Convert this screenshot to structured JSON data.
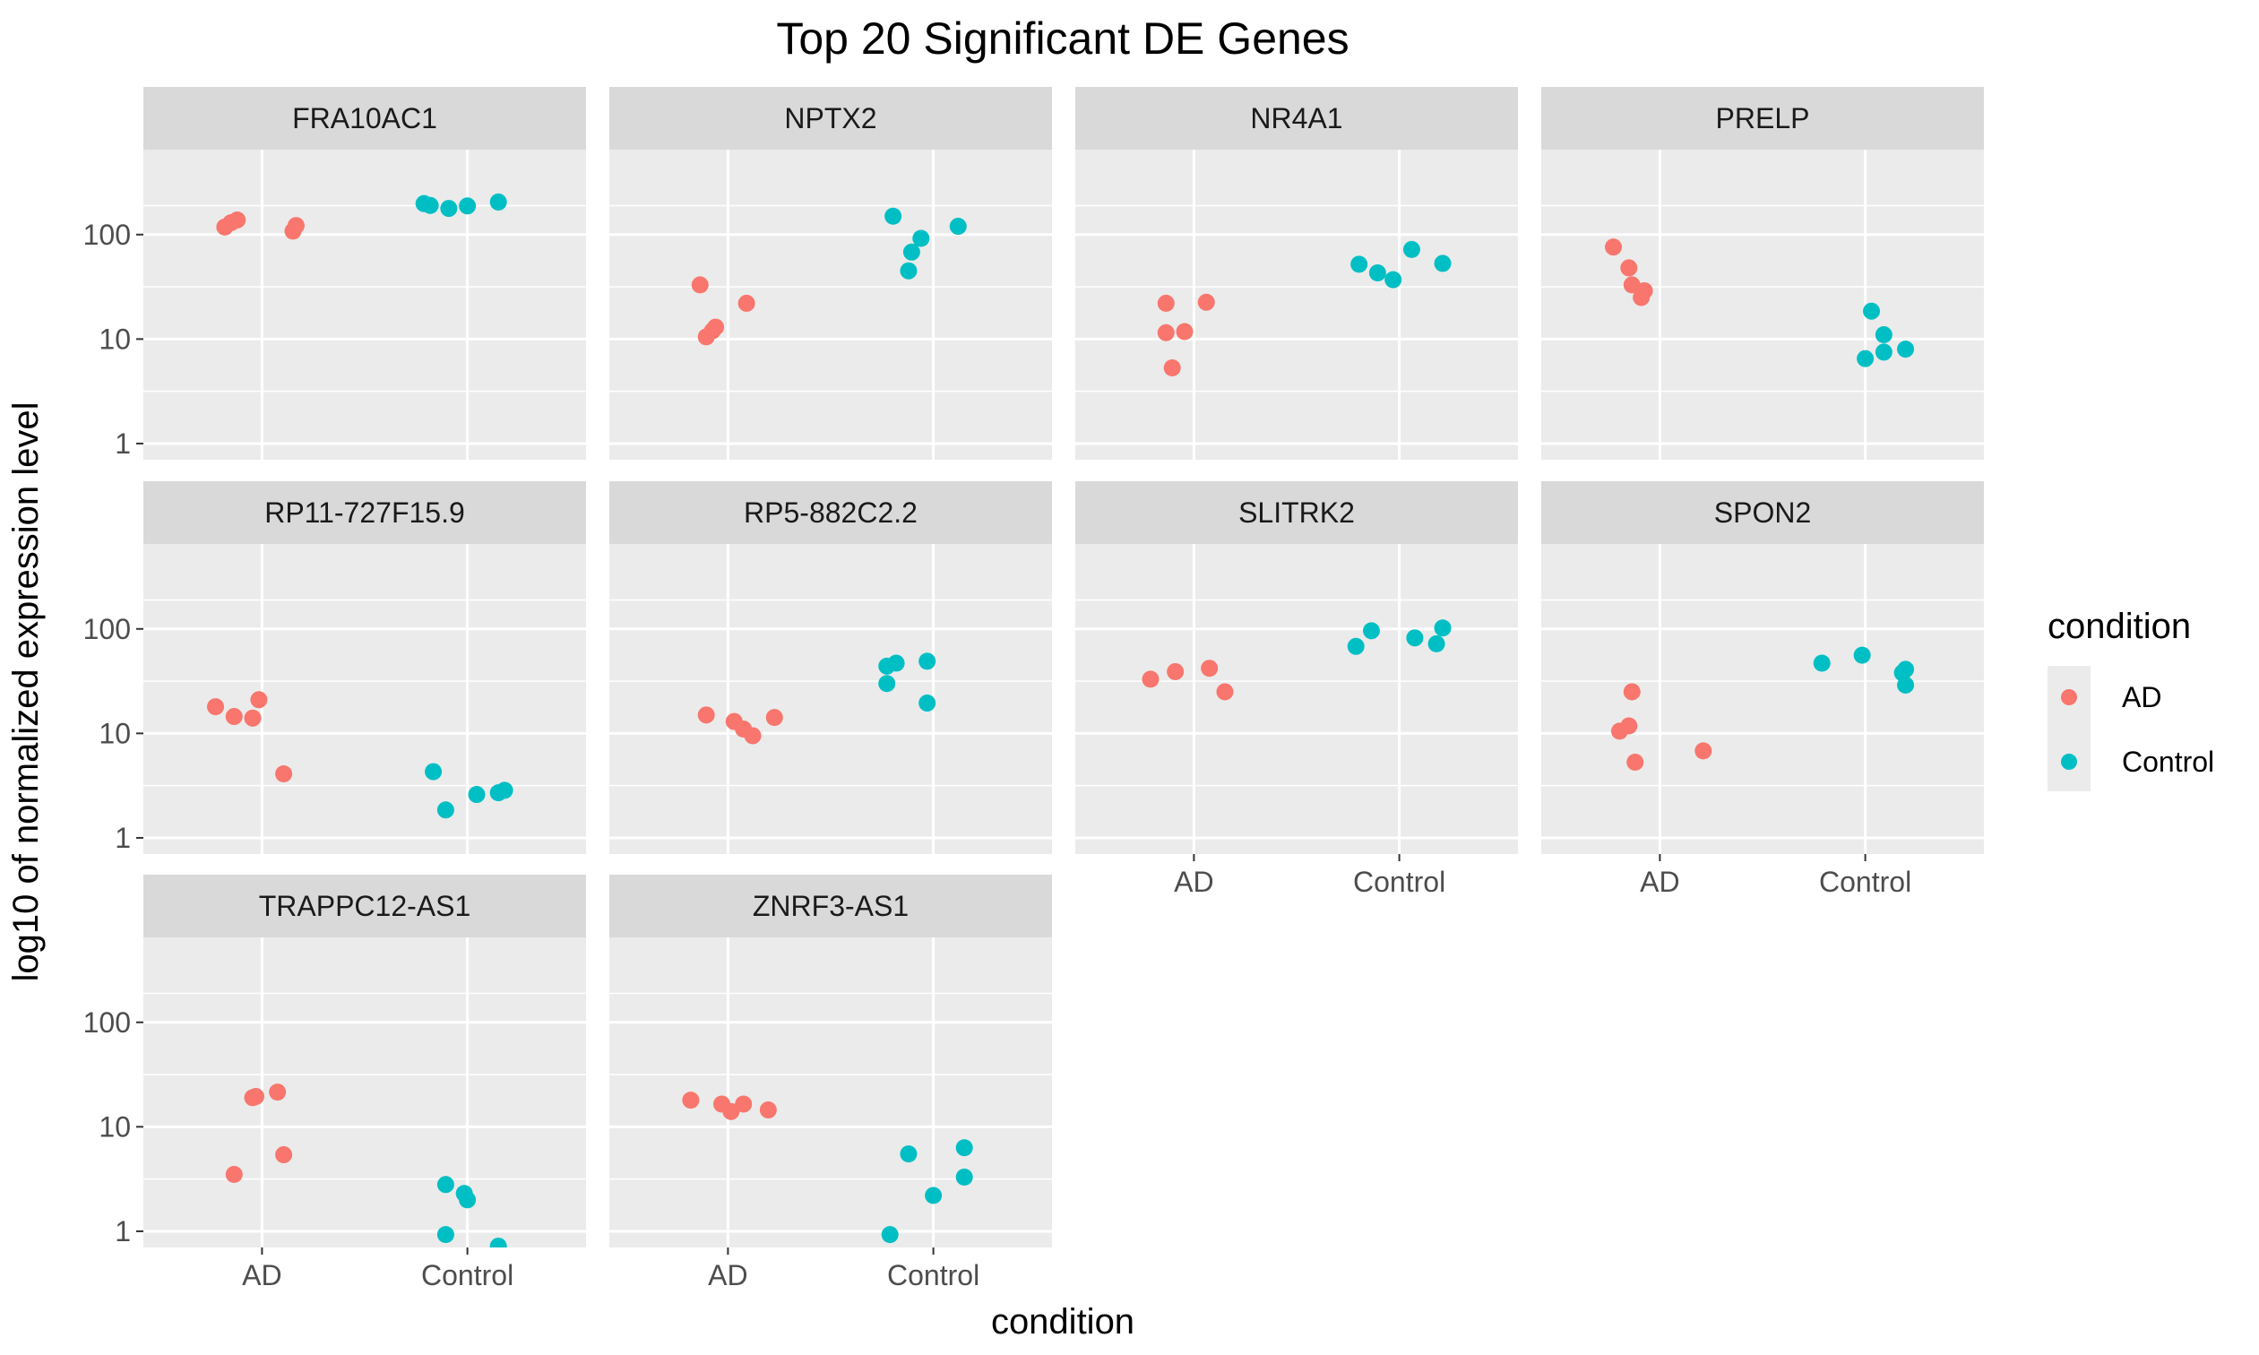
{
  "chart_data": {
    "type": "scatter",
    "title": "Top 20 Significant DE Genes",
    "xlabel": "condition",
    "ylabel": "log10 of normalized expression level",
    "categories": [
      "AD",
      "Control"
    ],
    "y_scale": "log10",
    "yticks": [
      1,
      10,
      100
    ],
    "yticks_labels": [
      "1",
      "10",
      "100"
    ],
    "ylim": [
      0.7,
      650
    ],
    "grid": true,
    "facet_layout": "4 columns, free x labels on bottom row of each column",
    "legend": {
      "title": "condition",
      "placement": "right",
      "entries": [
        {
          "name": "AD",
          "color": "#F8766D"
        },
        {
          "name": "Control",
          "color": "#00BFC4"
        }
      ]
    },
    "panels": [
      {
        "gene": "FRA10AC1",
        "AD": [
          {
            "j": -0.12,
            "y": 118
          },
          {
            "j": -0.1,
            "y": 130
          },
          {
            "j": -0.08,
            "y": 138
          },
          {
            "j": 0.1,
            "y": 108
          },
          {
            "j": 0.11,
            "y": 122
          }
        ],
        "Control": [
          {
            "j": -0.14,
            "y": 198
          },
          {
            "j": -0.12,
            "y": 190
          },
          {
            "j": -0.06,
            "y": 178
          },
          {
            "j": 0.0,
            "y": 188
          },
          {
            "j": 0.1,
            "y": 205
          }
        ]
      },
      {
        "gene": "NPTX2",
        "AD": [
          {
            "j": -0.09,
            "y": 33
          },
          {
            "j": -0.07,
            "y": 10.5
          },
          {
            "j": -0.05,
            "y": 12
          },
          {
            "j": -0.04,
            "y": 13
          },
          {
            "j": 0.06,
            "y": 22
          }
        ],
        "Control": [
          {
            "j": -0.13,
            "y": 150
          },
          {
            "j": -0.08,
            "y": 45
          },
          {
            "j": -0.07,
            "y": 68
          },
          {
            "j": -0.04,
            "y": 92
          },
          {
            "j": 0.08,
            "y": 120
          }
        ]
      },
      {
        "gene": "NR4A1",
        "AD": [
          {
            "j": -0.09,
            "y": 22
          },
          {
            "j": -0.09,
            "y": 11.5
          },
          {
            "j": -0.07,
            "y": 5.3
          },
          {
            "j": -0.03,
            "y": 11.8
          },
          {
            "j": 0.04,
            "y": 22.5
          }
        ],
        "Control": [
          {
            "j": -0.13,
            "y": 52
          },
          {
            "j": -0.07,
            "y": 43
          },
          {
            "j": -0.02,
            "y": 37
          },
          {
            "j": 0.04,
            "y": 72
          },
          {
            "j": 0.14,
            "y": 53
          }
        ]
      },
      {
        "gene": "PRELP",
        "AD": [
          {
            "j": -0.15,
            "y": 76
          },
          {
            "j": -0.1,
            "y": 48
          },
          {
            "j": -0.09,
            "y": 33
          },
          {
            "j": -0.05,
            "y": 29
          },
          {
            "j": -0.06,
            "y": 25
          }
        ],
        "Control": [
          {
            "j": 0.02,
            "y": 18.5
          },
          {
            "j": 0.0,
            "y": 6.5
          },
          {
            "j": 0.06,
            "y": 11
          },
          {
            "j": 0.06,
            "y": 7.5
          },
          {
            "j": 0.13,
            "y": 8
          }
        ]
      },
      {
        "gene": "RP11-727F15.9",
        "AD": [
          {
            "j": -0.15,
            "y": 18
          },
          {
            "j": -0.09,
            "y": 14.5
          },
          {
            "j": -0.03,
            "y": 14
          },
          {
            "j": -0.01,
            "y": 21
          },
          {
            "j": 0.07,
            "y": 4.1
          }
        ],
        "Control": [
          {
            "j": -0.11,
            "y": 4.3
          },
          {
            "j": -0.07,
            "y": 1.85
          },
          {
            "j": 0.03,
            "y": 2.6
          },
          {
            "j": 0.1,
            "y": 2.7
          },
          {
            "j": 0.12,
            "y": 2.85
          }
        ]
      },
      {
        "gene": "RP5-882C2.2",
        "AD": [
          {
            "j": -0.07,
            "y": 15
          },
          {
            "j": 0.02,
            "y": 13
          },
          {
            "j": 0.05,
            "y": 11
          },
          {
            "j": 0.08,
            "y": 9.5
          },
          {
            "j": 0.15,
            "y": 14.2
          }
        ],
        "Control": [
          {
            "j": -0.15,
            "y": 44
          },
          {
            "j": -0.15,
            "y": 30
          },
          {
            "j": -0.12,
            "y": 47
          },
          {
            "j": -0.02,
            "y": 49
          },
          {
            "j": -0.02,
            "y": 19.5
          }
        ]
      },
      {
        "gene": "SLITRK2",
        "AD": [
          {
            "j": -0.14,
            "y": 33
          },
          {
            "j": -0.06,
            "y": 39
          },
          {
            "j": 0.05,
            "y": 42
          },
          {
            "j": 0.1,
            "y": 25
          }
        ],
        "Control": [
          {
            "j": -0.14,
            "y": 68
          },
          {
            "j": -0.09,
            "y": 96
          },
          {
            "j": 0.05,
            "y": 82
          },
          {
            "j": 0.12,
            "y": 72
          },
          {
            "j": 0.14,
            "y": 102
          }
        ]
      },
      {
        "gene": "SPON2",
        "AD": [
          {
            "j": -0.13,
            "y": 10.5
          },
          {
            "j": -0.1,
            "y": 11.8
          },
          {
            "j": -0.09,
            "y": 25
          },
          {
            "j": -0.08,
            "y": 5.3
          },
          {
            "j": 0.14,
            "y": 6.8
          }
        ],
        "Control": [
          {
            "j": -0.14,
            "y": 47
          },
          {
            "j": -0.01,
            "y": 56
          },
          {
            "j": 0.12,
            "y": 38
          },
          {
            "j": 0.13,
            "y": 41
          },
          {
            "j": 0.13,
            "y": 29
          }
        ]
      },
      {
        "gene": "TRAPPC12-AS1",
        "AD": [
          {
            "j": -0.09,
            "y": 3.5
          },
          {
            "j": -0.03,
            "y": 19
          },
          {
            "j": -0.02,
            "y": 19.5
          },
          {
            "j": 0.05,
            "y": 21.5
          },
          {
            "j": 0.07,
            "y": 5.4
          }
        ],
        "Control": [
          {
            "j": -0.07,
            "y": 2.8
          },
          {
            "j": -0.07,
            "y": 0.93
          },
          {
            "j": -0.01,
            "y": 2.3
          },
          {
            "j": 0.0,
            "y": 2.0
          },
          {
            "j": 0.1,
            "y": 0.72
          }
        ]
      },
      {
        "gene": "ZNRF3-AS1",
        "AD": [
          {
            "j": -0.12,
            "y": 18
          },
          {
            "j": -0.02,
            "y": 16.5
          },
          {
            "j": 0.01,
            "y": 14
          },
          {
            "j": 0.05,
            "y": 16.5
          },
          {
            "j": 0.13,
            "y": 14.5
          }
        ],
        "Control": [
          {
            "j": -0.14,
            "y": 0.93
          },
          {
            "j": -0.08,
            "y": 5.5
          },
          {
            "j": 0.0,
            "y": 2.2
          },
          {
            "j": 0.1,
            "y": 3.3
          },
          {
            "j": 0.1,
            "y": 6.3
          }
        ]
      }
    ]
  }
}
